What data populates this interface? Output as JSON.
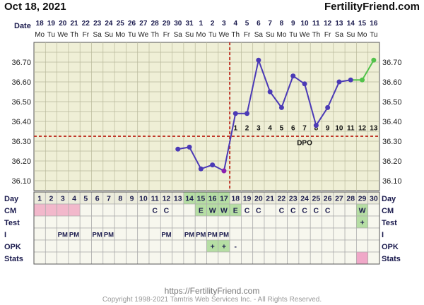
{
  "header": {
    "start_date": "Oct 18, 2021",
    "brand": "FertilityFriend.com"
  },
  "footer": {
    "url": "https://FertilityFriend.com",
    "copyright": "Copyright 1998-2021 Tamtris Web Services Inc. - All Rights Reserved."
  },
  "row_labels": {
    "date": "Date",
    "day": "Day",
    "cm": "CM",
    "test": "Test",
    "i": "I",
    "opk": "OPK",
    "stats": "Stats"
  },
  "dpo_label": "DPO",
  "chart_data": {
    "type": "line",
    "title": "",
    "xlabel": "Cycle Day",
    "ylabel": "",
    "ylim": [
      36.05,
      36.8
    ],
    "y_ticks": [
      "36.10",
      "36.20",
      "36.30",
      "36.40",
      "36.50",
      "36.60",
      "36.70"
    ],
    "cycle_days": [
      "1",
      "2",
      "3",
      "4",
      "5",
      "6",
      "7",
      "8",
      "9",
      "10",
      "11",
      "12",
      "13",
      "14",
      "15",
      "16",
      "17",
      "18",
      "19",
      "20",
      "21",
      "22",
      "23",
      "24",
      "25",
      "26",
      "27",
      "28",
      "29",
      "30"
    ],
    "dates": [
      "18",
      "19",
      "20",
      "21",
      "22",
      "23",
      "24",
      "25",
      "26",
      "27",
      "28",
      "29",
      "30",
      "31",
      "1",
      "2",
      "3",
      "4",
      "5",
      "6",
      "7",
      "8",
      "9",
      "10",
      "11",
      "12",
      "13",
      "14",
      "15",
      "16"
    ],
    "weekdays": [
      "Mo",
      "Tu",
      "We",
      "Th",
      "Fr",
      "Sa",
      "Su",
      "Mo",
      "Tu",
      "We",
      "Th",
      "Fr",
      "Sa",
      "Su",
      "Mo",
      "Tu",
      "We",
      "Th",
      "Fr",
      "Sa",
      "Su",
      "Mo",
      "Tu",
      "We",
      "Th",
      "Fr",
      "Sa",
      "Su",
      "Mo",
      "Tu"
    ],
    "temperatures": [
      null,
      null,
      null,
      null,
      null,
      null,
      null,
      null,
      null,
      null,
      null,
      null,
      36.26,
      36.27,
      36.16,
      36.18,
      36.15,
      36.44,
      36.44,
      36.71,
      36.55,
      36.47,
      36.63,
      36.59,
      36.38,
      36.47,
      36.6,
      36.61,
      36.61,
      36.71
    ],
    "point_colors": {
      "normal": "#4b3ab6",
      "ovulation_day": "#8a1fb0",
      "recent": "#52c24a"
    },
    "recent_from_day": 29,
    "ovulation_day": 17,
    "coverline": 36.325,
    "dpo": [
      "1",
      "2",
      "3",
      "4",
      "5",
      "6",
      "7",
      "8",
      "9",
      "10",
      "11",
      "12",
      "13"
    ],
    "cm": [
      "",
      "",
      "",
      "",
      "",
      "",
      "",
      "",
      "",
      "",
      "C",
      "C",
      "",
      "",
      "E",
      "W",
      "W",
      "E",
      "C",
      "C",
      "",
      "C",
      "C",
      "C",
      "C",
      "C",
      "",
      "",
      "W",
      ""
    ],
    "test": [
      "",
      "",
      "",
      "",
      "",
      "",
      "",
      "",
      "",
      "",
      "",
      "",
      "",
      "",
      "",
      "",
      "",
      "",
      "",
      "",
      "",
      "",
      "",
      "",
      "",
      "",
      "",
      "",
      "+",
      ""
    ],
    "intercourse": [
      "",
      "",
      "PM",
      "PM",
      "",
      "PM",
      "PM",
      "",
      "",
      "",
      "",
      "PM",
      "",
      "PM",
      "PM",
      "PM",
      "PM",
      "",
      "",
      "",
      "",
      "",
      "",
      "",
      "",
      "",
      "",
      "",
      "",
      ""
    ],
    "opk": [
      "",
      "",
      "",
      "",
      "",
      "",
      "",
      "",
      "",
      "",
      "",
      "",
      "",
      "",
      "",
      "+",
      "+",
      "-",
      "",
      "",
      "",
      "",
      "",
      "",
      "",
      "",
      "",
      "",
      "",
      ""
    ],
    "stats": [
      "",
      "",
      "",
      "",
      "",
      "",
      "",
      "",
      "",
      "",
      "",
      "",
      "",
      "",
      "",
      "",
      "",
      "",
      "",
      "",
      "",
      "",
      "",
      "",
      "",
      "",
      "",
      "",
      "x",
      ""
    ],
    "period_days": [
      1,
      2,
      3,
      4
    ],
    "fertile_days": [
      14,
      15,
      16,
      17
    ],
    "colors": {
      "grid_bg": "#efefd6",
      "grid_line": "#b9b99b",
      "row_bg": "#f7f7ee",
      "period": "#f2b8cb",
      "fertile": "#b6dea4",
      "coverline": "#c0392b",
      "text_dark": "#1a1a4d",
      "stats_fill": "#f0a8c8"
    }
  }
}
